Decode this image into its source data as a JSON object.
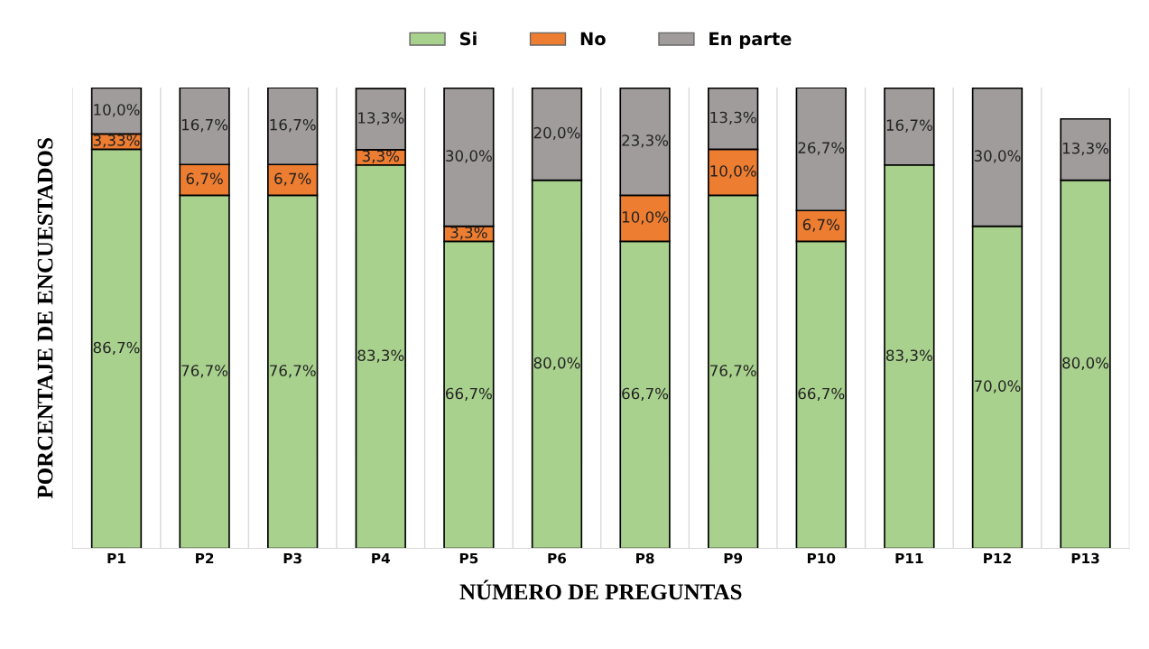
{
  "chart_data": {
    "type": "bar",
    "stacked": true,
    "xlabel": "NÚMERO DE PREGUNTAS",
    "ylabel": "PORCENTAJE DE ENCUESTADOS",
    "categories": [
      "P1",
      "P2",
      "P3",
      "P4",
      "P5",
      "P6",
      "P8",
      "P9",
      "P10",
      "P11",
      "P12",
      "P13"
    ],
    "series": [
      {
        "name": "Si",
        "color": "#a9d18e",
        "values": [
          86.7,
          76.7,
          76.7,
          83.3,
          66.7,
          80.0,
          66.7,
          76.7,
          66.7,
          83.3,
          70.0,
          80.0
        ],
        "value_labels": [
          "86,7%",
          "76,7%",
          "76,7%",
          "83,3%",
          "66,7%",
          "80,0%",
          "66,7%",
          "76,7%",
          "66,7%",
          "83,3%",
          "70,0%",
          "80,0%"
        ]
      },
      {
        "name": "No",
        "color": "#ed7d31",
        "values": [
          3.33,
          6.7,
          6.7,
          3.3,
          3.3,
          null,
          10.0,
          10.0,
          6.7,
          null,
          null,
          null
        ],
        "value_labels": [
          "3,33%",
          "6,7%",
          "6,7%",
          "3,3%",
          "3,3%",
          null,
          "10,0%",
          "10,0%",
          "6,7%",
          null,
          null,
          null
        ]
      },
      {
        "name": "En parte",
        "color": "#a09c9c",
        "values": [
          10.0,
          16.7,
          16.7,
          13.3,
          30.0,
          20.0,
          23.3,
          13.3,
          26.7,
          16.7,
          30.0,
          13.3
        ],
        "value_labels": [
          "10,0%",
          "16,7%",
          "16,7%",
          "13,3%",
          "30,0%",
          "20,0%",
          "23,3%",
          "13,3%",
          "26,7%",
          "16,7%",
          "30,0%",
          "13,3%"
        ]
      }
    ],
    "legend": "top",
    "tick_labels": "x"
  }
}
